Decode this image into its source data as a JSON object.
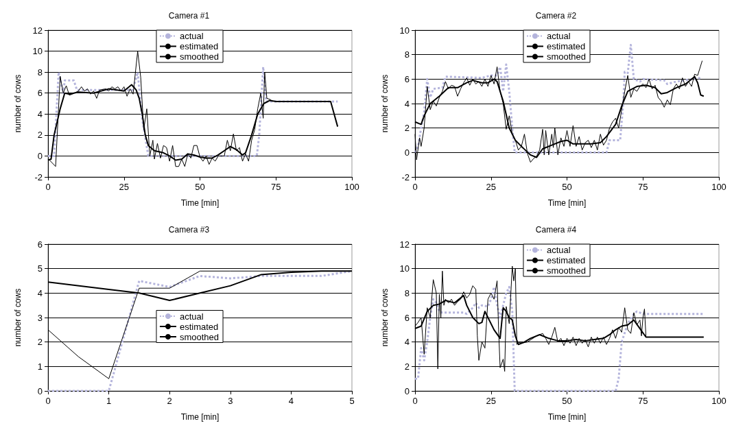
{
  "chart_data": [
    {
      "type": "line",
      "title": "Camera #1",
      "xlabel": "Time [min]",
      "ylabel": "number of cows",
      "xlim": [
        0,
        100
      ],
      "xticks": [
        0,
        25,
        50,
        75,
        100
      ],
      "ylim": [
        -2,
        12
      ],
      "yticks": [
        -2,
        0,
        2,
        4,
        6,
        8,
        10,
        12
      ],
      "grid": "y",
      "legend": "top",
      "marker": "none",
      "series": [
        {
          "name": "actual",
          "color": "#b4b4dc",
          "line_style": "dotted",
          "x": [
            0,
            2,
            3.5,
            5,
            5.5,
            8.5,
            9.5,
            28,
            29.5,
            31,
            33,
            68.7,
            69.5,
            70.8,
            71.8,
            95.3
          ],
          "values": [
            0,
            0,
            8.0,
            6.0,
            7.2,
            7.2,
            6.3,
            6.3,
            8.0,
            3.5,
            0,
            0,
            2,
            8.5,
            5.2,
            5.2
          ]
        },
        {
          "name": "estimated",
          "color": "#000000",
          "line_style": "solid",
          "x": [
            0.5,
            2.5,
            4,
            5,
            6,
            7,
            8,
            10,
            11,
            12,
            13,
            14,
            15,
            16,
            17,
            19,
            20,
            21,
            22,
            23,
            24,
            25,
            26,
            27,
            28,
            29.5,
            30.5,
            31.5,
            32.5,
            33.5,
            34.5,
            35,
            36,
            37,
            38,
            39,
            40,
            41,
            42,
            43,
            44,
            45,
            46,
            47,
            48,
            49,
            50,
            51,
            52,
            53,
            54,
            55,
            56,
            58,
            59,
            60,
            61,
            62,
            63,
            64,
            65,
            66,
            67,
            68,
            69,
            70,
            70.8,
            71.3,
            72,
            73,
            74
          ],
          "values": [
            -0.4,
            -1.0,
            7.6,
            6.0,
            6.7,
            5.8,
            5.9,
            6.2,
            6.6,
            6.2,
            6.4,
            5.9,
            6.2,
            5.5,
            6.3,
            6.4,
            6.2,
            6.6,
            6.4,
            6.6,
            6.2,
            6.6,
            5.7,
            6.4,
            5.9,
            10.0,
            7.5,
            2.5,
            4.5,
            0,
            1.5,
            -0.3,
            1.2,
            -0.2,
            1.0,
            0.8,
            -0.5,
            1.0,
            -1.0,
            -1.0,
            -0.3,
            -1.0,
            0.2,
            -0.2,
            1.0,
            1.0,
            -0.1,
            -0.5,
            0,
            -0.8,
            -0.2,
            -0.5,
            0,
            0,
            1.5,
            0.5,
            2.1,
            0.5,
            0.8,
            -0.5,
            0.2,
            -0.5,
            1.5,
            2.5,
            4.5,
            6.0,
            3.6,
            8.0,
            5.5,
            5.4,
            5.2
          ]
        },
        {
          "name": "smoothed",
          "color": "#000000",
          "line_style": "solid",
          "x": [
            0,
            1,
            2,
            4,
            5.5,
            7,
            10,
            15,
            20,
            25,
            27.5,
            29,
            30,
            31,
            32,
            33,
            35,
            38,
            40,
            42,
            44,
            46,
            48,
            50,
            52,
            54,
            56,
            58,
            60,
            62,
            64,
            65,
            67,
            69,
            71,
            73,
            75,
            93,
            95.3
          ],
          "values": [
            -0.4,
            -0.3,
            2.0,
            4.5,
            6.0,
            5.9,
            6.1,
            6.0,
            6.4,
            6.2,
            6.8,
            6.3,
            5.5,
            4.0,
            2.0,
            1.0,
            0.5,
            0.3,
            0,
            -0.4,
            -0.3,
            0.2,
            0.1,
            -0.1,
            -0.2,
            -0.2,
            0.1,
            0.5,
            0.9,
            0.6,
            0.1,
            0.3,
            2.0,
            4.0,
            5.0,
            5.3,
            5.2,
            5.2,
            2.8
          ]
        }
      ]
    },
    {
      "type": "line",
      "title": "Camera #2",
      "xlabel": "Time [min]",
      "ylabel": "number of cows",
      "xlim": [
        0,
        100
      ],
      "xticks": [
        0,
        25,
        50,
        75,
        100
      ],
      "ylim": [
        -2,
        10
      ],
      "yticks": [
        -2,
        0,
        2,
        4,
        6,
        8,
        10
      ],
      "grid": "y",
      "legend": "top",
      "marker": "none",
      "series": [
        {
          "name": "actual",
          "color": "#b4b4dc",
          "line_style": "dotted",
          "x": [
            0,
            1,
            2,
            3,
            4,
            5,
            6,
            9,
            10,
            22,
            25,
            27,
            28,
            29,
            30,
            31,
            32,
            32.8,
            63,
            64,
            67.5,
            68.5,
            69,
            70,
            71,
            72,
            74,
            75,
            82,
            83,
            86,
            94
          ],
          "values": [
            0,
            0.5,
            2,
            3.3,
            6.0,
            4.5,
            5.2,
            5.3,
            6.2,
            6.1,
            6.3,
            6.3,
            7.0,
            5.0,
            7.2,
            5.0,
            2,
            0,
            0,
            1,
            1,
            4,
            6.6,
            6.5,
            8.8,
            6,
            5.8,
            6.0,
            5.9,
            5.6,
            5.8,
            6.1
          ]
        },
        {
          "name": "estimated",
          "color": "#000000",
          "line_style": "solid",
          "x": [
            0,
            0.5,
            1.5,
            2,
            3,
            4,
            5,
            6,
            7,
            8,
            9,
            10,
            11,
            12,
            13,
            14,
            15,
            16,
            17,
            18,
            19,
            20,
            21,
            22,
            23,
            24,
            25,
            26,
            27,
            28,
            29,
            30,
            31,
            32,
            33,
            34,
            35,
            36,
            37,
            38,
            39,
            40,
            41,
            42,
            42.5,
            43,
            44,
            45,
            45.5,
            46,
            47,
            48,
            49,
            50,
            51,
            52,
            53,
            54,
            55,
            56,
            57,
            58,
            59,
            60,
            61,
            62,
            63,
            64,
            65,
            66,
            67,
            68,
            69,
            70,
            71,
            72,
            73,
            74,
            75,
            76,
            77,
            78,
            79,
            80,
            81,
            82,
            83,
            84,
            85,
            86,
            87,
            88,
            89,
            90,
            91,
            92,
            93,
            94.5
          ],
          "values": [
            1.5,
            -0.6,
            1.2,
            0.5,
            2,
            5.4,
            3.5,
            4.2,
            3.8,
            4.5,
            5.0,
            5.8,
            5.2,
            5.5,
            5.4,
            4.6,
            5.2,
            5.7,
            6.1,
            5.5,
            6.0,
            5.6,
            5.8,
            5.4,
            6.0,
            5.4,
            6.3,
            5.6,
            7.0,
            5.0,
            4.0,
            1.9,
            3.0,
            1.5,
            1.0,
            0.2,
            0.5,
            1.5,
            -0.1,
            -0.8,
            -0.5,
            -0.3,
            0.2,
            1.9,
            -0.2,
            1.8,
            -0.2,
            1.5,
            0.4,
            2.0,
            -0.2,
            1.2,
            0.5,
            1.8,
            0.5,
            2.2,
            0.5,
            1.3,
            0.2,
            0.8,
            1.0,
            0.4,
            1.0,
            0.2,
            1.5,
            0.6,
            1.0,
            2.0,
            2.5,
            2.8,
            2.0,
            3.5,
            5.0,
            6.3,
            4.5,
            5.2,
            5.0,
            5.4,
            5.6,
            5.3,
            6.0,
            5.2,
            5.5,
            4.5,
            4.2,
            3.7,
            4.3,
            3.9,
            5.2,
            5.6,
            5.2,
            6.1,
            5.4,
            5.8,
            5.4,
            6.4,
            6.3,
            7.5
          ]
        },
        {
          "name": "smoothed",
          "color": "#000000",
          "line_style": "solid",
          "x": [
            0,
            2,
            3,
            5,
            8,
            11,
            14,
            17,
            19,
            22,
            24,
            26,
            27,
            29,
            31,
            33,
            35,
            38,
            40,
            42,
            45,
            48,
            50,
            52,
            55,
            58,
            61,
            63,
            66,
            68,
            70,
            73,
            76,
            79,
            81,
            83,
            86,
            89,
            92,
            93,
            94,
            95
          ],
          "values": [
            2.5,
            2.3,
            3.0,
            4.0,
            4.6,
            5.3,
            5.3,
            5.7,
            5.9,
            5.7,
            5.7,
            6.0,
            5.8,
            4.2,
            2.0,
            1.0,
            0.5,
            -0.2,
            -0.4,
            0.3,
            0.6,
            0.9,
            1.0,
            0.7,
            0.7,
            0.7,
            0.8,
            1.3,
            2.3,
            3.8,
            5.0,
            5.4,
            5.5,
            5.3,
            4.8,
            4.9,
            5.3,
            5.6,
            6.2,
            5.7,
            4.7,
            4.6
          ]
        }
      ]
    },
    {
      "type": "line",
      "title": "Camera #3",
      "xlabel": "Time [min]",
      "ylabel": "number of cows",
      "xlim": [
        0,
        5
      ],
      "xticks": [
        0,
        1,
        2,
        3,
        4,
        5
      ],
      "ylim": [
        0,
        6
      ],
      "yticks": [
        0,
        1,
        2,
        3,
        4,
        5,
        6
      ],
      "grid": "y",
      "legend": "center",
      "marker": "none",
      "series": [
        {
          "name": "actual",
          "color": "#b4b4dc",
          "line_style": "dotted",
          "x": [
            0,
            1,
            1.5,
            2,
            2.5,
            3,
            3.5,
            4.5,
            5
          ],
          "values": [
            0,
            0,
            4.5,
            4.25,
            4.7,
            4.6,
            4.7,
            4.7,
            4.9
          ]
        },
        {
          "name": "estimated",
          "color": "#000000",
          "line_style": "solid",
          "x": [
            0,
            0.5,
            1,
            1.5,
            2,
            2.5,
            3,
            3.5,
            4,
            4.5,
            5
          ],
          "values": [
            2.5,
            1.4,
            0.5,
            4.2,
            4.2,
            4.9,
            4.9,
            4.9,
            4.9,
            4.9,
            4.9
          ]
        },
        {
          "name": "smoothed",
          "color": "#000000",
          "line_style": "solid",
          "x": [
            0,
            1,
            1.5,
            2,
            2.5,
            3,
            3.5,
            4,
            4.5,
            5
          ],
          "values": [
            4.45,
            4.15,
            4.0,
            3.7,
            4.0,
            4.3,
            4.75,
            4.85,
            4.9,
            4.9
          ]
        }
      ]
    },
    {
      "type": "line",
      "title": "Camera #4",
      "xlabel": "Time [min]",
      "ylabel": "number of cows",
      "xlim": [
        0,
        100
      ],
      "xticks": [
        0,
        25,
        50,
        75,
        100
      ],
      "ylim": [
        0,
        12
      ],
      "yticks": [
        0,
        2,
        4,
        6,
        8,
        10,
        12
      ],
      "grid": "y",
      "legend": "top",
      "marker": "none",
      "series": [
        {
          "name": "actual",
          "color": "#b4b4dc",
          "line_style": "dotted",
          "x": [
            0,
            1,
            2,
            3,
            4,
            5,
            6,
            7,
            8,
            9,
            16,
            17,
            19,
            20,
            21,
            22,
            24,
            25,
            26,
            27,
            28,
            29,
            30,
            31,
            32,
            32.8,
            66,
            67,
            68,
            70,
            72,
            73,
            75,
            95
          ],
          "values": [
            1,
            1,
            3.5,
            2.5,
            4,
            6,
            7.5,
            7.2,
            6.5,
            6.4,
            6.4,
            6.3,
            6.8,
            7.2,
            6.8,
            7.0,
            6.9,
            7.5,
            8.5,
            7.0,
            6.0,
            7.0,
            8.0,
            8.5,
            6.5,
            0,
            0,
            1,
            4,
            5.5,
            6.3,
            6.5,
            6.3,
            6.3
          ]
        },
        {
          "name": "estimated",
          "color": "#000000",
          "line_style": "solid",
          "x": [
            0,
            1,
            2,
            3,
            4,
            5,
            6,
            7,
            7.5,
            8,
            8.5,
            9,
            9.5,
            10,
            11,
            12,
            13,
            14,
            15,
            16,
            17,
            18,
            19,
            20,
            20.5,
            21,
            22,
            23,
            24,
            25,
            26,
            27,
            27.5,
            28,
            29,
            29.5,
            30,
            31,
            32,
            32.5,
            33,
            33.5,
            34,
            35,
            37,
            40,
            42,
            43,
            44,
            45,
            46,
            47,
            48,
            49,
            50,
            51,
            52,
            53,
            54,
            55,
            56,
            57,
            58,
            59,
            60,
            61,
            62,
            63,
            64,
            65,
            66,
            67,
            68,
            69,
            70,
            71,
            72,
            73,
            74,
            74.5,
            75,
            75.5,
            76
          ],
          "values": [
            5.3,
            5.6,
            6.0,
            3.0,
            6.8,
            6.0,
            9.1,
            8.0,
            1.8,
            7.9,
            6.0,
            9.8,
            7.0,
            7.5,
            7.2,
            7.5,
            7.0,
            7.3,
            7.5,
            8.1,
            7.6,
            7.9,
            8.6,
            8.3,
            4.5,
            2.5,
            4.0,
            3.5,
            7.5,
            8.0,
            7.5,
            9.0,
            5.0,
            1.9,
            2.6,
            1.6,
            6.9,
            5.5,
            10.2,
            9.0,
            10.0,
            3.8,
            4.0,
            3.9,
            4.0,
            4.5,
            4.7,
            4.3,
            3.8,
            4.4,
            5.2,
            4.0,
            4.3,
            3.7,
            4.3,
            3.9,
            4.4,
            3.7,
            4.3,
            3.9,
            4.2,
            3.6,
            4.4,
            3.9,
            4.4,
            3.9,
            4.4,
            3.8,
            4.3,
            5.0,
            4.3,
            5.2,
            4.8,
            6.8,
            5.0,
            4.7,
            6.4,
            5.4,
            5.8,
            4.5,
            6.0,
            6.7,
            4.4
          ]
        },
        {
          "name": "smoothed",
          "color": "#000000",
          "line_style": "solid",
          "x": [
            0,
            2,
            4,
            6,
            8,
            10,
            13,
            16,
            17,
            19,
            21,
            22,
            23,
            24,
            26,
            28,
            29,
            30,
            31,
            32,
            33,
            34,
            36,
            38,
            41,
            44,
            47,
            50,
            53,
            56,
            59,
            62,
            64,
            66,
            68,
            70,
            72,
            74,
            76,
            95
          ],
          "values": [
            5.1,
            5.3,
            6.5,
            7.0,
            7.1,
            7.4,
            7.2,
            7.8,
            7.0,
            6.0,
            5.5,
            5.6,
            6.5,
            6.0,
            5.0,
            4.3,
            6.8,
            6.5,
            6.0,
            5.8,
            4.5,
            3.8,
            4.0,
            4.3,
            4.6,
            4.3,
            4.1,
            4.1,
            4.2,
            4.1,
            4.2,
            4.3,
            4.6,
            5.0,
            5.3,
            5.4,
            5.8,
            5.1,
            4.4,
            4.4
          ]
        }
      ]
    }
  ]
}
